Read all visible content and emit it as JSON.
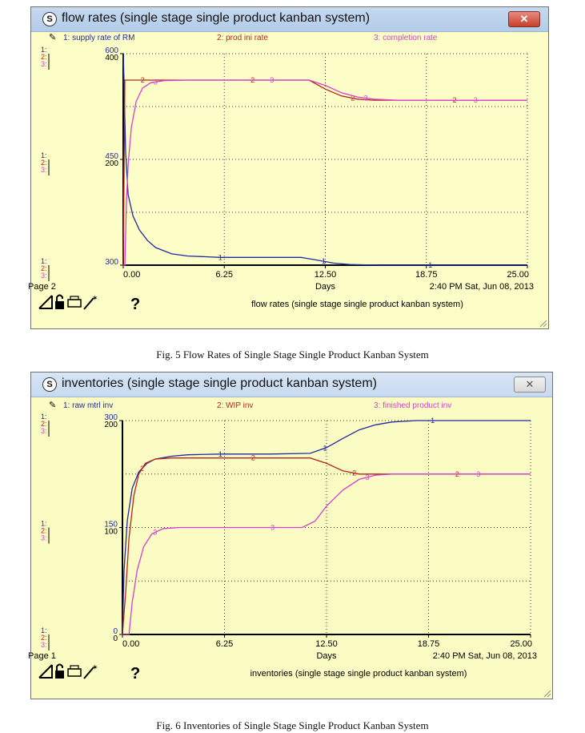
{
  "windows": [
    {
      "title": "flow rates (single stage single product kanban system)",
      "close_label": "✕",
      "page_label": "Page 2",
      "footer_title": "flow rates (single stage single product kanban system)",
      "time_stamp": "2:40 PM   Sat, Jun 08, 2013",
      "help_label": "?"
    },
    {
      "title": "inventories (single stage single product kanban system)",
      "close_label": "✕",
      "page_label": "Page 1",
      "footer_title": "inventories (single stage single product kanban system)",
      "time_stamp": "2:40 PM   Sat, Jun 08, 2013",
      "help_label": "?"
    }
  ],
  "captions": [
    "Fig. 5 Flow Rates of Single Stage Single Product Kanban System",
    "Fig. 6 Inventories of Single Stage Single Product Kanban System"
  ],
  "colors": {
    "series1": "#1f2aa0",
    "series2": "#b3261e",
    "series3": "#d43fd4",
    "background": "#fdfdc8"
  },
  "icons": [
    "s-icon",
    "legend-pin-icon",
    "doc-corner-icon",
    "lock-icon",
    "printer-icon",
    "magic-wand-icon",
    "help-icon",
    "resize-grip-icon"
  ],
  "chart_data": [
    {
      "type": "line",
      "title": "flow rates (single stage single product kanban system)",
      "xlabel": "Days",
      "x_ticks": [
        "0.00",
        "6.25",
        "12.50",
        "18.75",
        "25.00"
      ],
      "xlim": [
        0,
        25
      ],
      "grid": true,
      "legend_position": "top",
      "axes": [
        {
          "series_index": 1,
          "ticks": [
            "600",
            "450",
            "300"
          ],
          "ylim": [
            300,
            600
          ]
        },
        {
          "series_index": 2,
          "ticks": [
            "400",
            "200",
            ""
          ],
          "ylim": [
            0,
            400
          ]
        },
        {
          "series_index": 3,
          "ticks": [
            "",
            "",
            ""
          ],
          "ylim": [
            0,
            400
          ]
        }
      ],
      "series": [
        {
          "name": "1: supply rate of RM",
          "color": "#1f2aa0",
          "x": [
            0,
            0.05,
            0.15,
            0.3,
            0.6,
            1,
            1.5,
            2,
            3,
            4,
            6,
            8,
            11,
            11.8,
            13,
            14,
            15,
            16,
            18,
            20,
            25
          ],
          "y": [
            600,
            560,
            460,
            400,
            370,
            350,
            335,
            325,
            316,
            313,
            311,
            311,
            311,
            308,
            303,
            301,
            300.5,
            300,
            300,
            300,
            300
          ]
        },
        {
          "name": "2: prod ini rate",
          "color": "#b3261e",
          "x": [
            0,
            0.1,
            0.2,
            0.4,
            1,
            3,
            6,
            9,
            11.5,
            12.5,
            13.5,
            14.5,
            15.5,
            17,
            20,
            25
          ],
          "y": [
            0,
            350,
            350,
            350,
            350,
            350,
            350,
            350,
            350,
            333,
            320,
            314,
            312,
            312,
            312,
            312
          ]
        },
        {
          "name": "3: completion rate",
          "color": "#d43fd4",
          "x": [
            0,
            0.1,
            0.2,
            0.3,
            0.5,
            0.8,
            1.2,
            1.7,
            2.5,
            4,
            6,
            9,
            11.5,
            12.5,
            13.5,
            14.5,
            15.5,
            17,
            20,
            25
          ],
          "y": [
            0,
            0,
            120,
            190,
            260,
            310,
            335,
            345,
            349,
            350,
            350,
            350,
            350,
            340,
            326,
            318,
            314,
            312,
            312,
            312
          ]
        }
      ]
    },
    {
      "type": "line",
      "title": "inventories (single stage single product kanban system)",
      "xlabel": "Days",
      "x_ticks": [
        "0.00",
        "6.25",
        "12.50",
        "18.75",
        "25.00"
      ],
      "xlim": [
        0,
        25
      ],
      "grid": true,
      "legend_position": "top",
      "axes": [
        {
          "series_index": 1,
          "ticks": [
            "300",
            "150",
            "0"
          ],
          "ylim": [
            0,
            300
          ]
        },
        {
          "series_index": 2,
          "ticks": [
            "200",
            "100",
            "0"
          ],
          "ylim": [
            0,
            200
          ]
        },
        {
          "series_index": 3,
          "ticks": [
            "",
            "",
            ""
          ],
          "ylim": [
            0,
            200
          ]
        }
      ],
      "series": [
        {
          "name": "1: raw mtrl inv",
          "color": "#1f2aa0",
          "x": [
            0,
            0.1,
            0.3,
            0.6,
            1,
            1.5,
            2,
            3,
            4,
            6,
            9,
            11.5,
            12.5,
            13.5,
            14.5,
            15.5,
            16.5,
            18,
            20,
            25
          ],
          "y": [
            0,
            90,
            160,
            205,
            228,
            240,
            246,
            250,
            252,
            253,
            253,
            254,
            262,
            275,
            287,
            294,
            298,
            300,
            300,
            300
          ]
        },
        {
          "name": "2: WIP inv",
          "color": "#b3261e",
          "x": [
            0,
            0.2,
            0.4,
            0.7,
            1,
            1.4,
            2,
            3,
            5,
            8,
            11.5,
            12.5,
            13.5,
            14.5,
            15.5,
            17,
            20,
            25
          ],
          "y": [
            0,
            40,
            90,
            130,
            150,
            160,
            164,
            165,
            165,
            165,
            165,
            160,
            153,
            150,
            150,
            150,
            150,
            150
          ]
        },
        {
          "name": "3: finished product inv",
          "color": "#d43fd4",
          "x": [
            0,
            0.4,
            0.6,
            0.9,
            1.3,
            1.8,
            2.5,
            3.5,
            5,
            8,
            11,
            11.8,
            12.5,
            13.5,
            14.5,
            15.5,
            16.5,
            18,
            20,
            25
          ],
          "y": [
            0,
            0,
            30,
            60,
            82,
            94,
            99,
            100,
            100,
            100,
            100,
            106,
            120,
            135,
            145,
            149,
            150,
            150,
            150,
            150
          ]
        }
      ]
    }
  ]
}
